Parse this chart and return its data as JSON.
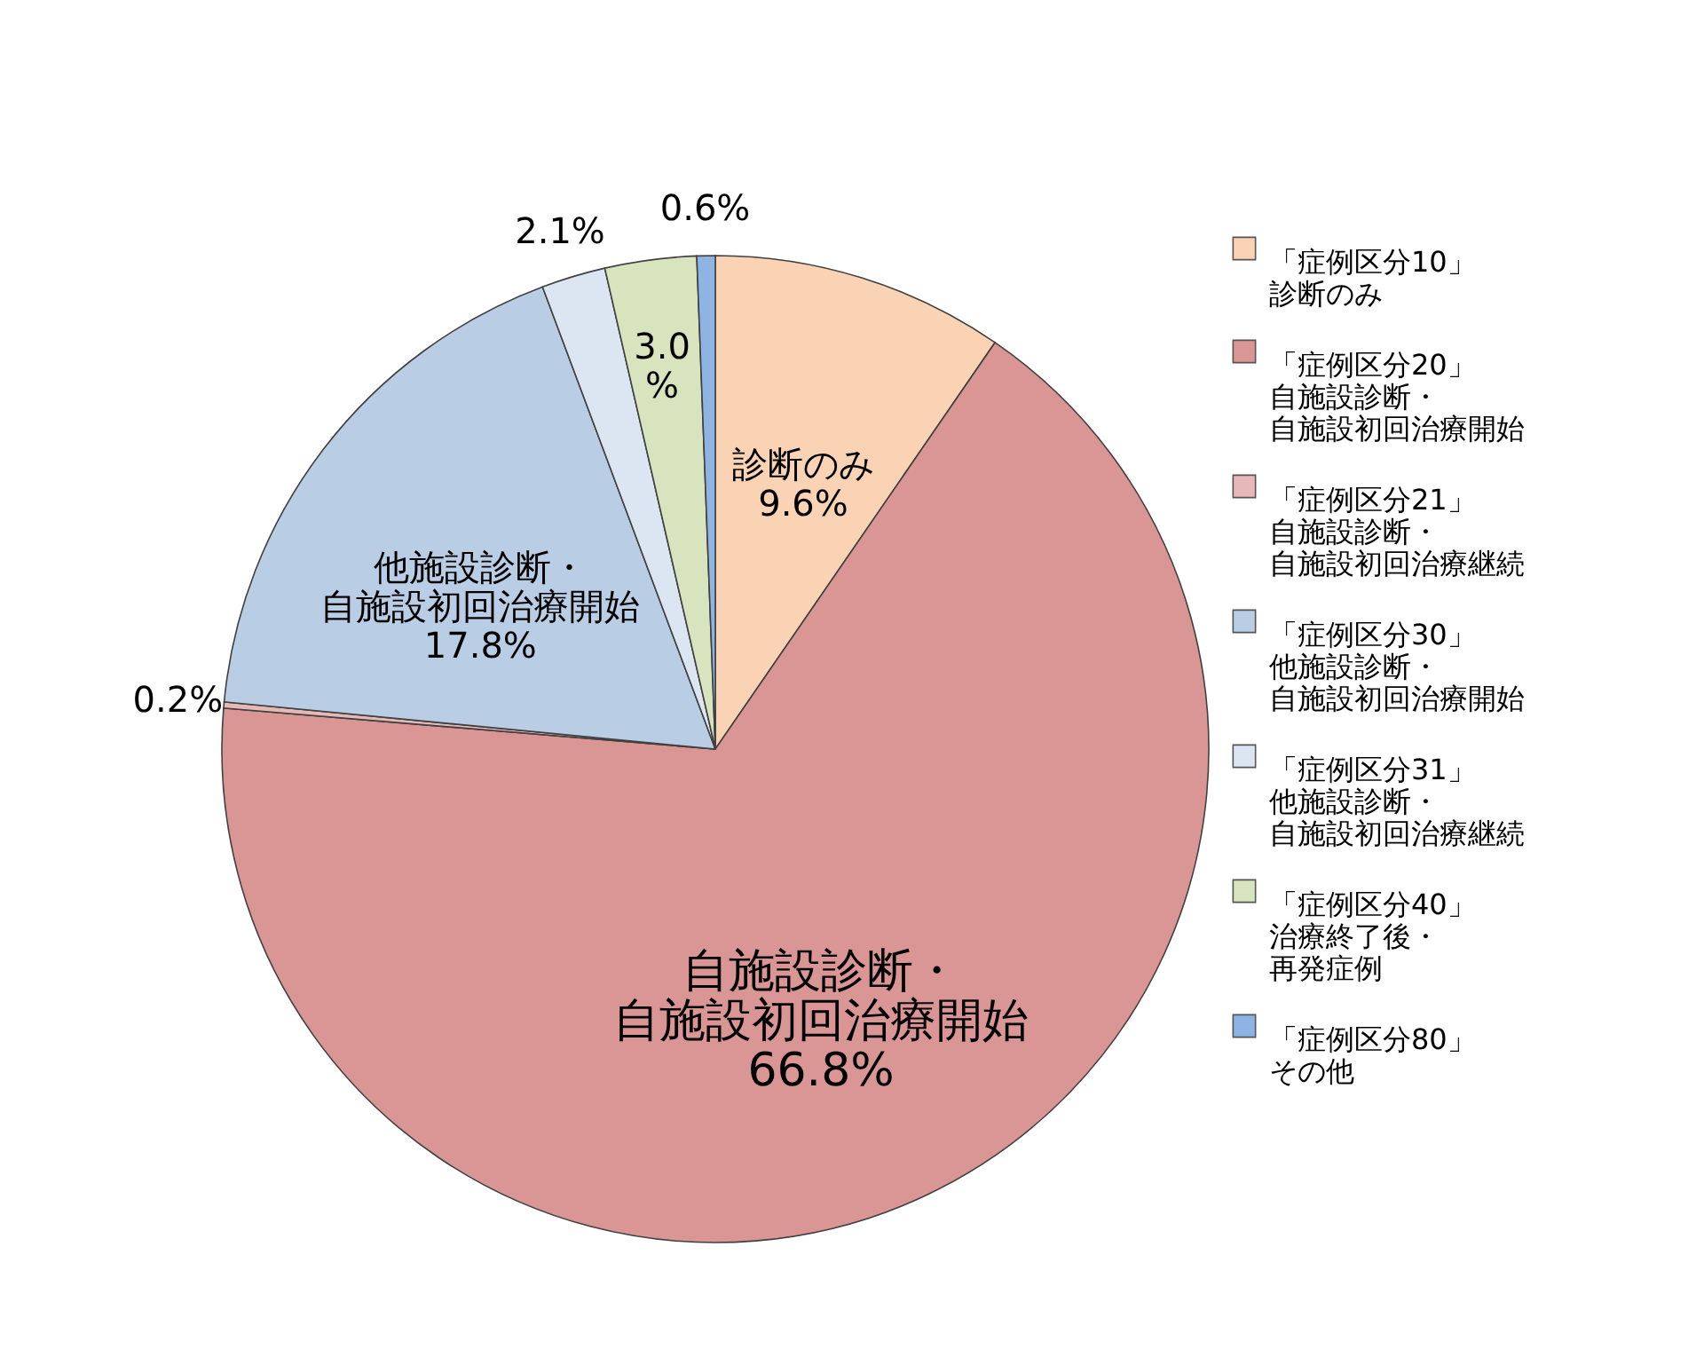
{
  "chart_data": {
    "type": "pie",
    "categories": [
      "「症例区分10」診断のみ",
      "「症例区分20」自施設診断・自施設初回治療開始",
      "「症例区分21」自施設診断・自施設初回治療継続",
      "「症例区分30」他施設診断・自施設初回治療開始",
      "「症例区分31」他施設診断・自施設初回治療継続",
      "「症例区分40」治療終了後・再発症例",
      "「症例区分80」その他"
    ],
    "values": [
      9.6,
      66.8,
      0.2,
      17.8,
      2.1,
      3.0,
      0.6
    ],
    "colors": [
      "#fad3b4",
      "#d99694",
      "#e6b9b8",
      "#b9cde5",
      "#dce6f2",
      "#d7e4bd",
      "#8eb4e3"
    ],
    "value_labels": [
      "診断のみ9.6%",
      "自施設診断・自施設初回治療開始66.8%",
      "0.2%",
      "他施設診断・自施設初回治療開始17.8%",
      "2.1%",
      "3.0%",
      "0.6%"
    ],
    "legend": "right"
  }
}
